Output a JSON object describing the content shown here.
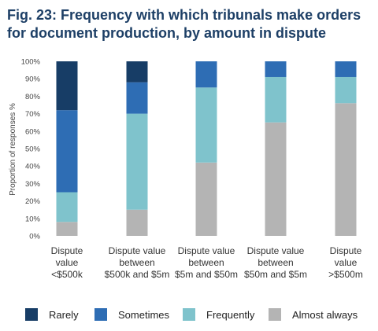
{
  "figure": {
    "title": "Fig. 23: Frequency with which tribunals make orders for document production, by amount in dispute"
  },
  "chart_data": {
    "type": "bar",
    "stacked": true,
    "ylabel": "Proportion of responses %",
    "ylim": [
      0,
      100
    ],
    "yticks": [
      "0%",
      "10%",
      "20%",
      "30%",
      "40%",
      "50%",
      "60%",
      "70%",
      "80%",
      "90%",
      "100%"
    ],
    "grid": false,
    "legend_position": "bottom",
    "categories": [
      [
        "Dispute",
        "value",
        "<$500k"
      ],
      [
        "Dispute value",
        "between",
        "$500k and $5m"
      ],
      [
        "Dispute value",
        "between",
        "$5m and $50m"
      ],
      [
        "Dispute value",
        "between",
        "$50m and $5m"
      ],
      [
        "Dispute",
        "value",
        ">$500m"
      ]
    ],
    "series": [
      {
        "name": "Almost always",
        "color": "#b4b4b4",
        "values": [
          8,
          15,
          42,
          65,
          76
        ]
      },
      {
        "name": "Frequently",
        "color": "#7fc3cc",
        "values": [
          17,
          55,
          43,
          26,
          15
        ]
      },
      {
        "name": "Sometimes",
        "color": "#2e6db4",
        "values": [
          47,
          18,
          15,
          9,
          9
        ]
      },
      {
        "name": "Rarely",
        "color": "#173d66",
        "values": [
          28,
          12,
          0,
          0,
          0
        ]
      }
    ],
    "legend_order": [
      "Rarely",
      "Sometimes",
      "Frequently",
      "Almost always"
    ]
  }
}
